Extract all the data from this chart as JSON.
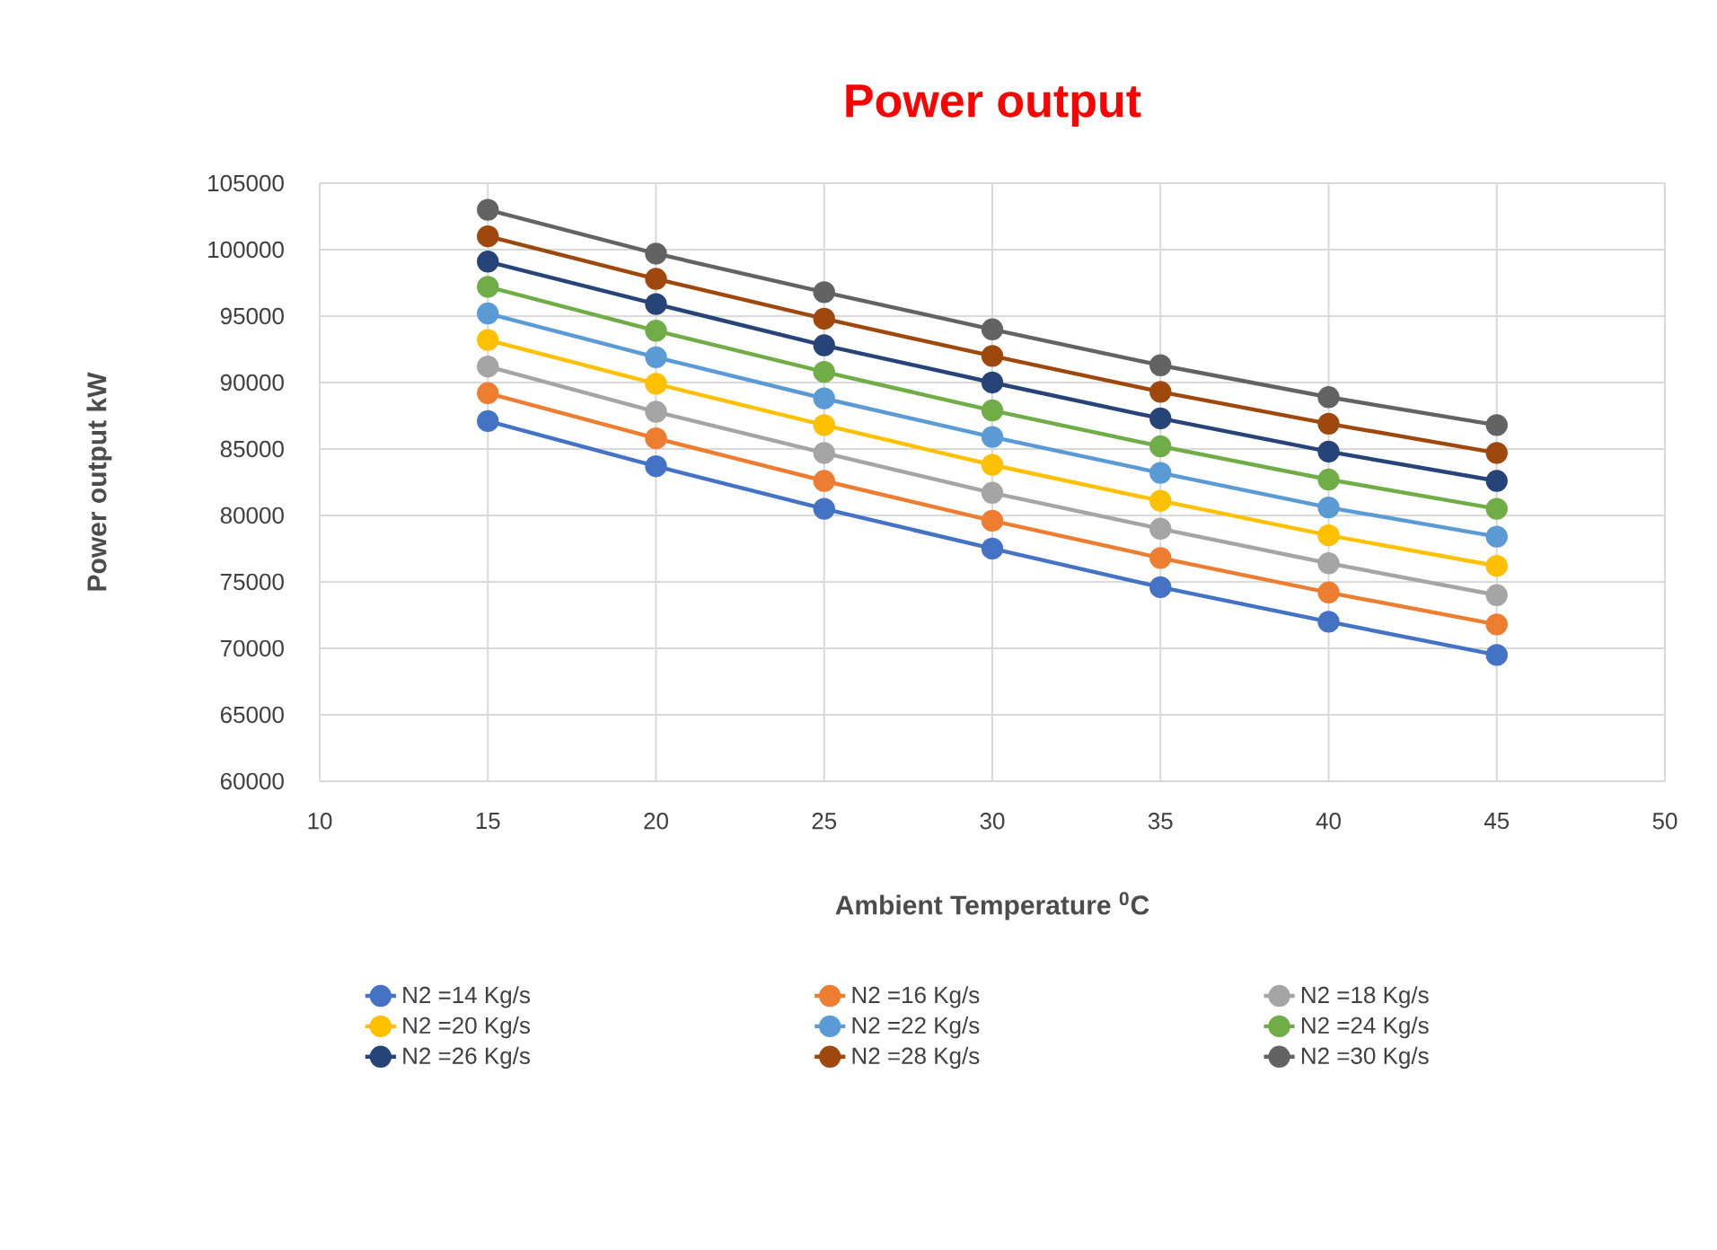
{
  "chart_data": {
    "type": "line",
    "title": "Power output",
    "xlabel": "Ambient Temperature $^{0}$C",
    "ylabel": "Power output kW",
    "x": [
      15,
      20,
      25,
      30,
      35,
      40,
      45
    ],
    "xlim": [
      10,
      50
    ],
    "xticks": [
      10,
      15,
      20,
      25,
      30,
      35,
      40,
      45,
      50
    ],
    "ylim": [
      60000,
      105000
    ],
    "yticks": [
      60000,
      65000,
      70000,
      75000,
      80000,
      85000,
      90000,
      95000,
      100000,
      105000
    ],
    "grid": true,
    "legend": "bottom",
    "marker": "circle",
    "line_style": "solid",
    "series": [
      {
        "name": "N2 =14 Kg/s",
        "color": "#4472c4",
        "values": [
          87100,
          83700,
          80500,
          77500,
          74600,
          72000,
          69500
        ]
      },
      {
        "name": "N2 =16 Kg/s",
        "color": "#ed7d31",
        "values": [
          89200,
          85800,
          82600,
          79600,
          76800,
          74200,
          71800
        ]
      },
      {
        "name": "N2 =18 Kg/s",
        "color": "#a5a5a5",
        "values": [
          91200,
          87800,
          84700,
          81700,
          79000,
          76400,
          74000
        ]
      },
      {
        "name": "N2 =20 Kg/s",
        "color": "#ffc000",
        "values": [
          93200,
          89900,
          86800,
          83800,
          81100,
          78500,
          76200
        ]
      },
      {
        "name": "N2 =22 Kg/s",
        "color": "#5b9bd5",
        "values": [
          95200,
          91900,
          88800,
          85900,
          83200,
          80600,
          78400
        ]
      },
      {
        "name": "N2 =24 Kg/s",
        "color": "#70ad47",
        "values": [
          97200,
          93900,
          90800,
          87900,
          85200,
          82700,
          80500
        ]
      },
      {
        "name": "N2 =26 Kg/s",
        "color": "#264478",
        "values": [
          99100,
          95900,
          92800,
          90000,
          87300,
          84800,
          82600
        ]
      },
      {
        "name": "N2 =28 Kg/s",
        "color": "#9e480e",
        "values": [
          101000,
          97800,
          94800,
          92000,
          89300,
          86900,
          84700
        ]
      },
      {
        "name": "N2 =30 Kg/s",
        "color": "#636363",
        "values": [
          103000,
          99700,
          96800,
          94000,
          91300,
          88900,
          86800
        ]
      }
    ]
  }
}
